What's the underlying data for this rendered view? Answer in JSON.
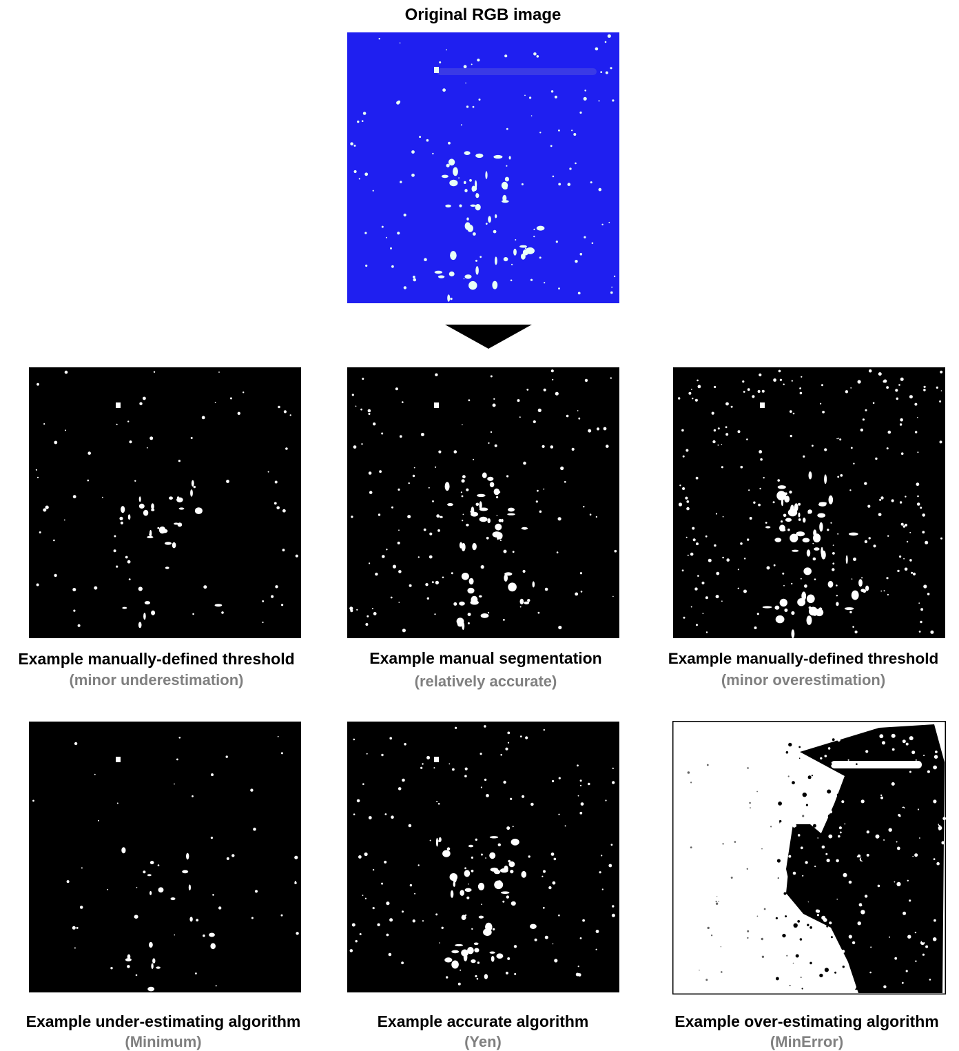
{
  "original": {
    "title": "Original RGB image",
    "colors": {
      "background": "#1f1ff0",
      "blob": "#e8fff6"
    }
  },
  "arrow_icon": "down-triangle-icon",
  "panels": [
    {
      "id": "manual-threshold-under",
      "title": "Example manually-defined threshold",
      "subtitle": "(minor underestimation)",
      "density": "low",
      "colors": {
        "background": "#000000",
        "blob": "#ffffff"
      }
    },
    {
      "id": "manual-segmentation",
      "title": "Example manual segmentation",
      "subtitle": "(relatively accurate)",
      "density": "medium",
      "colors": {
        "background": "#000000",
        "blob": "#ffffff"
      }
    },
    {
      "id": "manual-threshold-over",
      "title": "Example manually-defined threshold",
      "subtitle": "(minor overestimation)",
      "density": "high",
      "colors": {
        "background": "#000000",
        "blob": "#ffffff"
      }
    },
    {
      "id": "algorithm-minimum",
      "title": "Example under-estimating algorithm",
      "subtitle": "(Minimum)",
      "density": "very-low",
      "colors": {
        "background": "#000000",
        "blob": "#ffffff"
      }
    },
    {
      "id": "algorithm-yen",
      "title": "Example accurate algorithm",
      "subtitle": "(Yen)",
      "density": "medium",
      "colors": {
        "background": "#000000",
        "blob": "#ffffff"
      }
    },
    {
      "id": "algorithm-minerror",
      "title": "Example over-estimating algorithm",
      "subtitle": "(MinError)",
      "density": "saturated",
      "colors": {
        "background": "#ffffff",
        "blob": "#000000"
      }
    }
  ]
}
